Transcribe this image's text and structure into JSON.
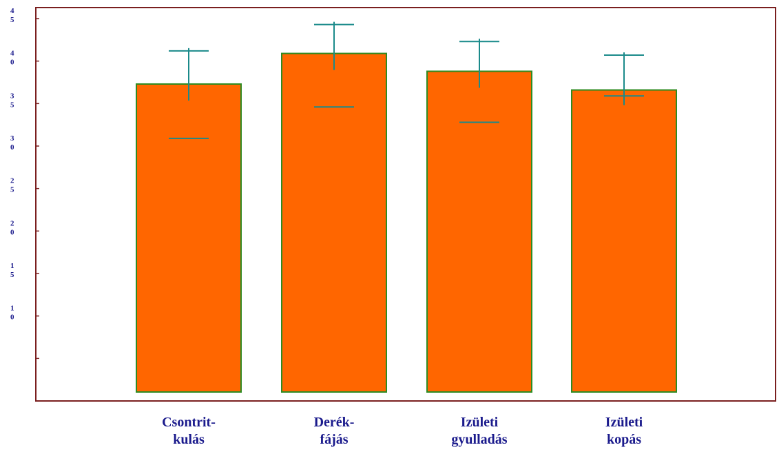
{
  "chart_data": {
    "type": "bar",
    "categories": [
      [
        "Csontrit-",
        "kulás"
      ],
      [
        "Derék-",
        "fájás"
      ],
      [
        "Izületi",
        "gyulladás"
      ],
      [
        "Izületi",
        "kopás"
      ]
    ],
    "values": [
      37.3,
      40.9,
      38.8,
      36.6
    ],
    "error_upper": [
      41.2,
      44.3,
      42.3,
      40.7
    ],
    "error_lower": [
      30.9,
      34.6,
      32.8,
      35.9
    ],
    "ytick_values": [
      45,
      40,
      35,
      30,
      25,
      20,
      15,
      10
    ],
    "ytick_labels": [
      [
        "4",
        "5"
      ],
      [
        "4",
        "0"
      ],
      [
        "3",
        "5"
      ],
      [
        "3",
        "0"
      ],
      [
        "2",
        "5"
      ],
      [
        "2",
        "0"
      ],
      [
        "1",
        "5"
      ],
      [
        "1",
        "0"
      ]
    ],
    "ylim": [
      0,
      45
    ],
    "title": "",
    "xlabel": "",
    "ylabel": "",
    "grid": false,
    "colors": {
      "bar_fill": "#ff6600",
      "bar_stroke": "#2e8b22",
      "error_bar": "#1a8a8a",
      "frame": "#7a1f1f",
      "label": "#1a1a8c"
    }
  }
}
